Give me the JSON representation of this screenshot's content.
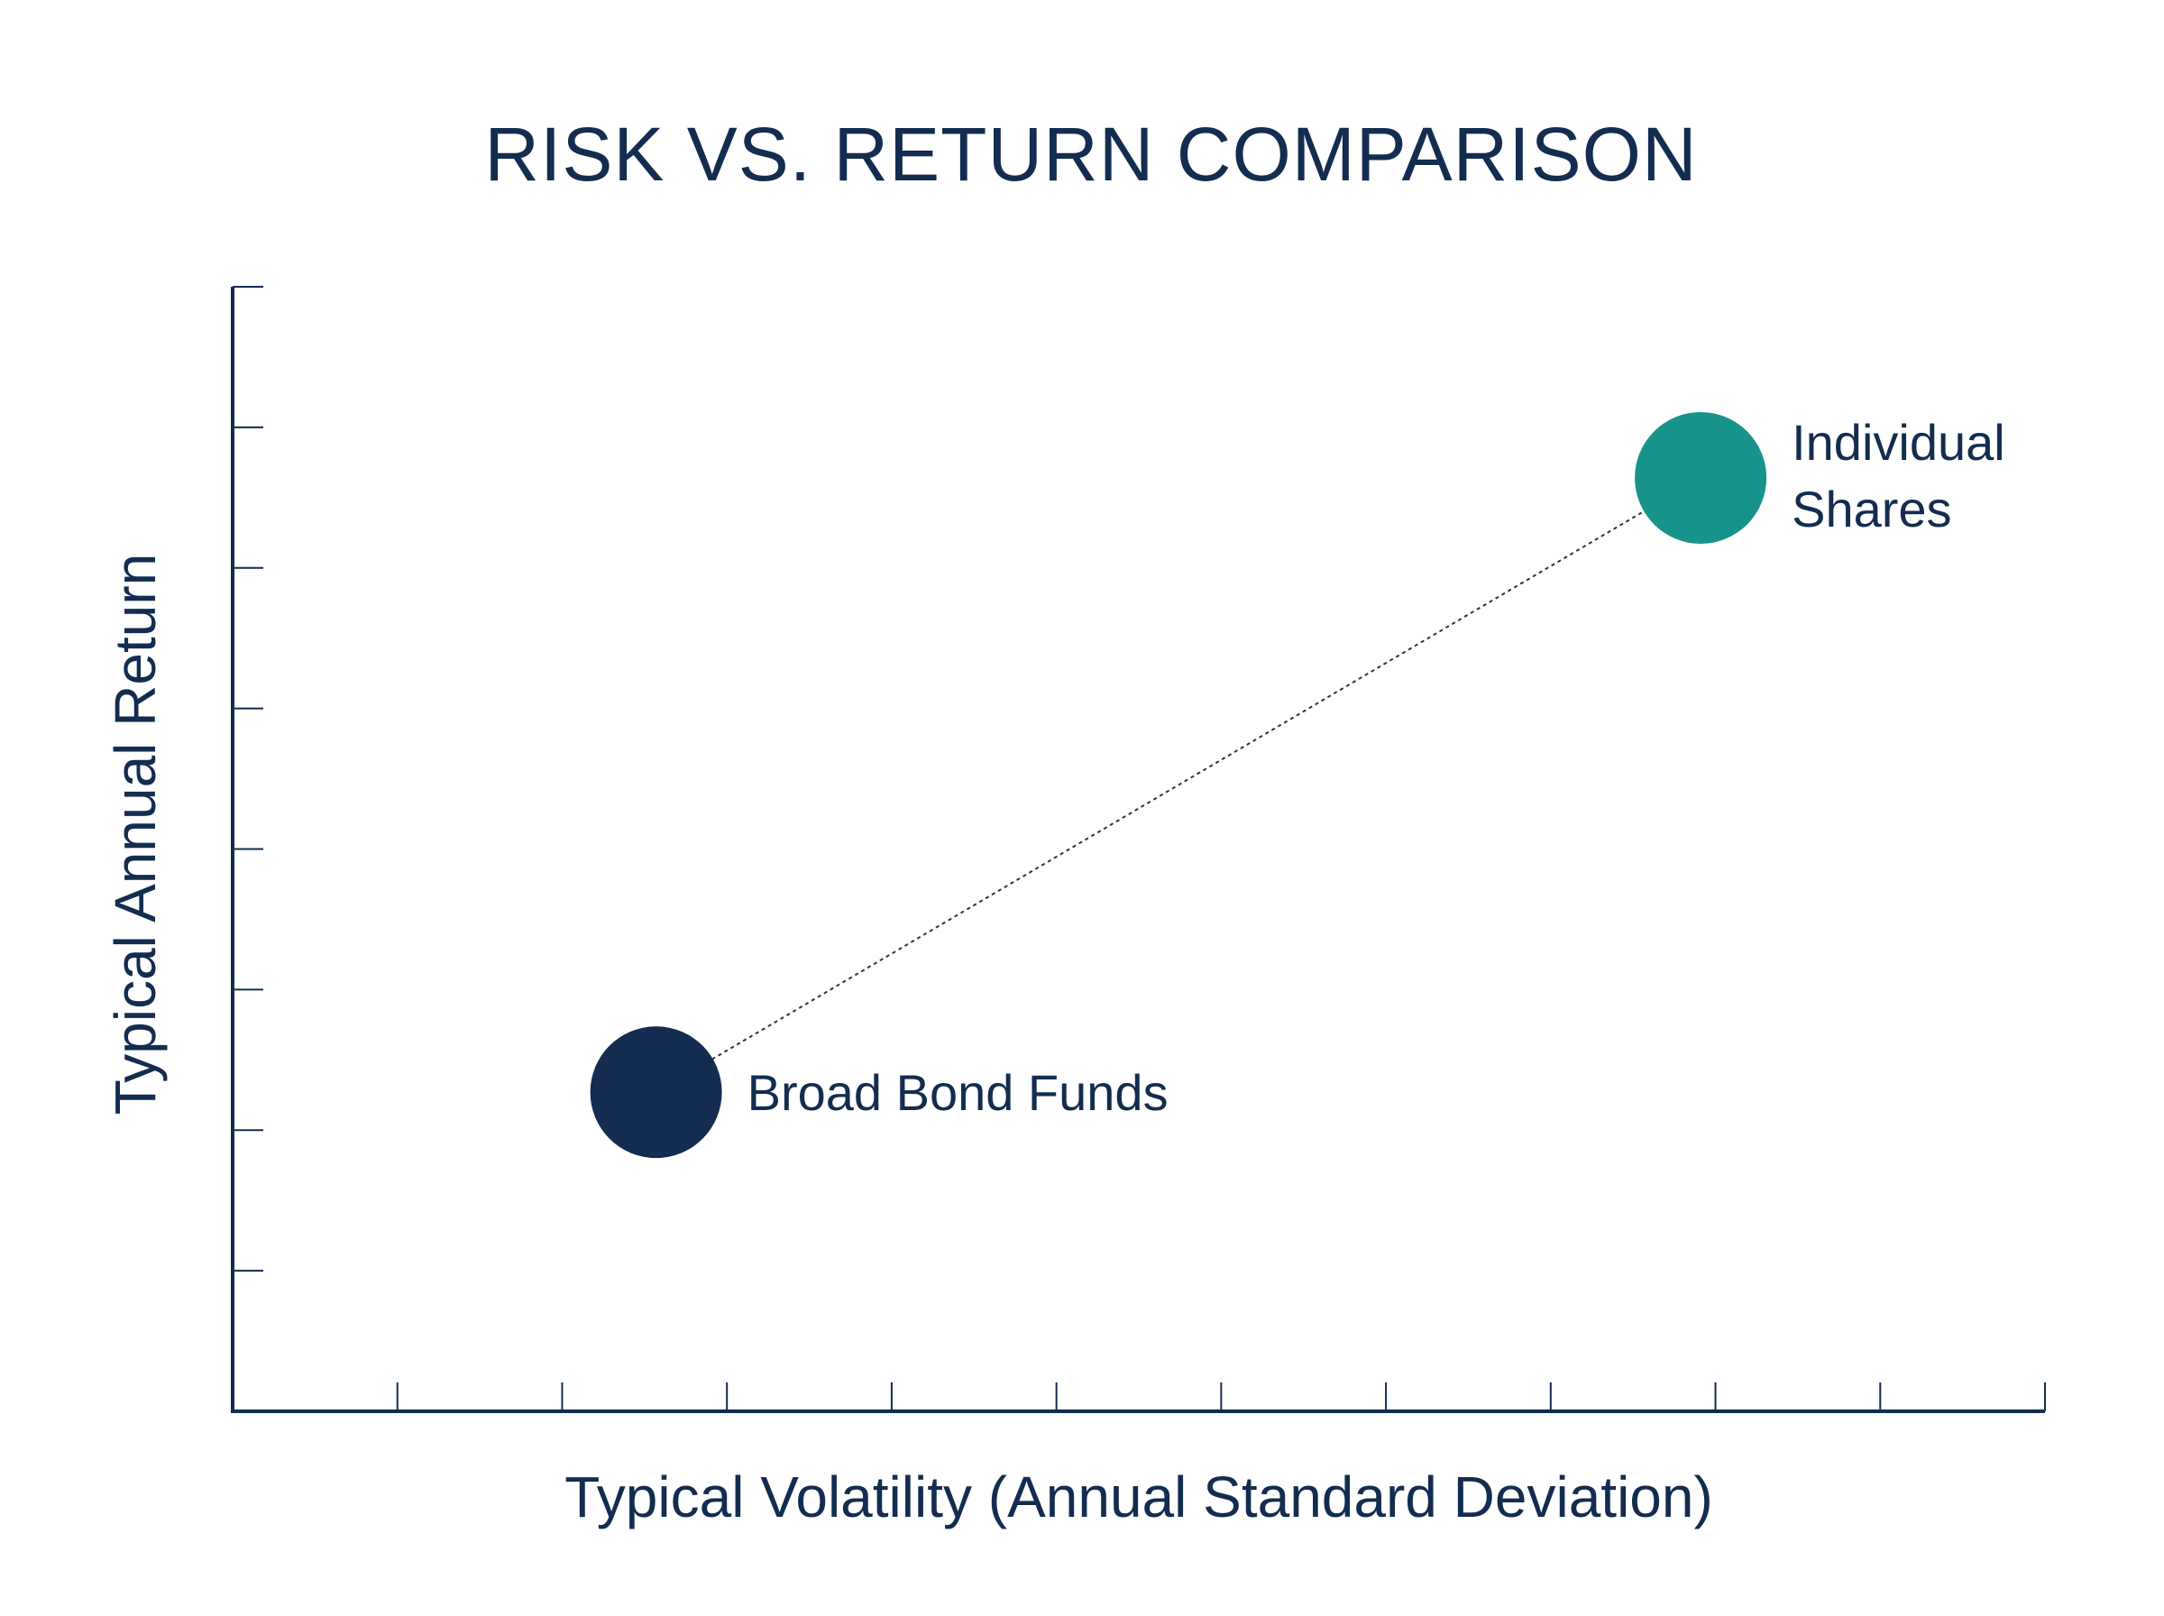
{
  "chart_data": {
    "type": "scatter",
    "title": "RISK VS. RETURN COMPARISON",
    "xlabel": "Typical Volatility (Annual Standard Deviation)",
    "ylabel": "Typical Annual Return",
    "xlim": [
      0,
      11
    ],
    "ylim": [
      0,
      8
    ],
    "x_ticks": 11,
    "y_ticks": 8,
    "grid": false,
    "legend": "none",
    "connector": "dotted",
    "points": [
      {
        "label": "Broad Bond Funds",
        "x": 2.57,
        "y": 2.27,
        "color": "#132c4f"
      },
      {
        "label": "Individual Shares",
        "label_lines": [
          "Individual",
          "Shares"
        ],
        "x": 8.91,
        "y": 6.64,
        "color": "#17938b"
      }
    ],
    "colors": {
      "text": "#132c4f",
      "axis": "#132c4f",
      "connector": "#333333"
    }
  }
}
